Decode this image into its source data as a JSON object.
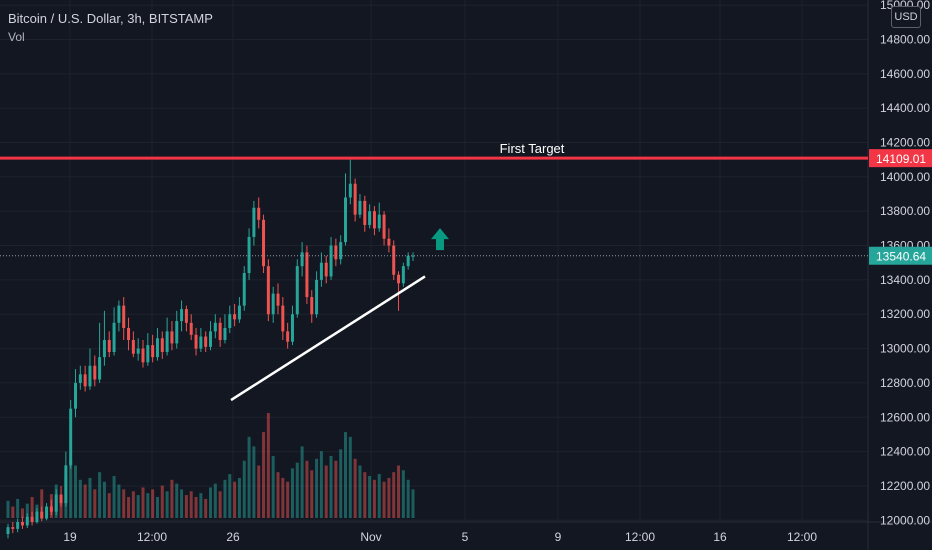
{
  "header": {
    "symbol_line": "Bitcoin / U.S. Dollar, 3h, BITSTAMP",
    "volume_label": "Vol"
  },
  "currency_button": "USD",
  "colors": {
    "background": "#131722",
    "grid": "#1e222d",
    "up": "#26a69a",
    "down": "#ef5350",
    "target_line": "#f23645",
    "trendline": "#ffffff",
    "arrow": "#089981",
    "price_tag": "#26a69a",
    "text": "#d1d4dc"
  },
  "chart_data": {
    "type": "candlestick",
    "y_axis": {
      "ticks": [
        "15000.00",
        "14800.00",
        "14600.00",
        "14400.00",
        "14200.00",
        "14000.00",
        "13800.00",
        "13600.00",
        "13400.00",
        "13200.00",
        "13000.00",
        "12800.00",
        "12600.00",
        "12400.00",
        "12200.00",
        "12000.00"
      ],
      "range": [
        11990,
        15030
      ]
    },
    "x_axis": {
      "ticks": [
        "19",
        "12:00",
        "26",
        "Nov",
        "5",
        "9",
        "12:00",
        "16",
        "12:00"
      ]
    },
    "horizontal_line": {
      "label": "First Target",
      "price": 14109.01,
      "price_label": "14109.01"
    },
    "current_price": {
      "price": 13540.64,
      "price_label": "13540.64"
    },
    "trendline": {
      "from_price": 12700,
      "to_price": 13420
    },
    "arrow": {
      "direction": "up",
      "price": 13620
    },
    "candles": [
      [
        11920,
        11960,
        11895,
        11980
      ],
      [
        11960,
        11950,
        11925,
        11990
      ],
      [
        11950,
        11990,
        11930,
        12010
      ],
      [
        11990,
        11970,
        11950,
        12020
      ],
      [
        11970,
        12020,
        11955,
        12040
      ],
      [
        12020,
        11990,
        11970,
        12050
      ],
      [
        11990,
        12050,
        11980,
        12070
      ],
      [
        12050,
        12010,
        11995,
        12080
      ],
      [
        12010,
        12080,
        12000,
        12100
      ],
      [
        12080,
        12050,
        12030,
        12120
      ],
      [
        12050,
        12150,
        12030,
        12180
      ],
      [
        12150,
        12100,
        12080,
        12200
      ],
      [
        12100,
        12320,
        12080,
        12400
      ],
      [
        12320,
        12650,
        12300,
        12700
      ],
      [
        12650,
        12800,
        12600,
        12880
      ],
      [
        12800,
        12850,
        12760,
        12900
      ],
      [
        12850,
        12780,
        12750,
        12900
      ],
      [
        12780,
        12900,
        12760,
        13000
      ],
      [
        12900,
        12820,
        12780,
        12960
      ],
      [
        12820,
        12950,
        12800,
        13150
      ],
      [
        12950,
        13050,
        12900,
        13220
      ],
      [
        13050,
        12980,
        12950,
        13100
      ],
      [
        12980,
        13150,
        12960,
        13240
      ],
      [
        13150,
        13250,
        13100,
        13280
      ],
      [
        13250,
        13120,
        13050,
        13300
      ],
      [
        13120,
        13050,
        12990,
        13180
      ],
      [
        13050,
        12970,
        12950,
        13100
      ],
      [
        12970,
        13000,
        12930,
        13060
      ],
      [
        13000,
        12920,
        12890,
        13050
      ],
      [
        12920,
        13020,
        12900,
        13090
      ],
      [
        13020,
        12950,
        12920,
        13080
      ],
      [
        12950,
        13060,
        12930,
        13120
      ],
      [
        13060,
        12980,
        12940,
        13100
      ],
      [
        12980,
        13100,
        12960,
        13180
      ],
      [
        13100,
        13030,
        12990,
        13160
      ],
      [
        13030,
        13160,
        13000,
        13220
      ],
      [
        13160,
        13230,
        13100,
        13280
      ],
      [
        13230,
        13150,
        13100,
        13250
      ],
      [
        13150,
        13080,
        13050,
        13200
      ],
      [
        13080,
        13000,
        12960,
        13120
      ],
      [
        13000,
        13070,
        12980,
        13120
      ],
      [
        13070,
        13010,
        12980,
        13100
      ],
      [
        13010,
        13100,
        12990,
        13160
      ],
      [
        13100,
        13150,
        13060,
        13200
      ],
      [
        13150,
        13050,
        13010,
        13180
      ],
      [
        13050,
        13120,
        13030,
        13200
      ],
      [
        13120,
        13200,
        13090,
        13250
      ],
      [
        13200,
        13170,
        13130,
        13260
      ],
      [
        13170,
        13250,
        13150,
        13300
      ],
      [
        13250,
        13440,
        13220,
        13480
      ],
      [
        13440,
        13650,
        13400,
        13700
      ],
      [
        13650,
        13820,
        13600,
        13860
      ],
      [
        13820,
        13750,
        13700,
        13880
      ],
      [
        13750,
        13480,
        13440,
        13780
      ],
      [
        13480,
        13200,
        13160,
        13520
      ],
      [
        13200,
        13320,
        13150,
        13360
      ],
      [
        13320,
        13250,
        13200,
        13380
      ],
      [
        13250,
        13100,
        13050,
        13300
      ],
      [
        13100,
        13040,
        13000,
        13150
      ],
      [
        13040,
        13200,
        13020,
        13250
      ],
      [
        13200,
        13480,
        13180,
        13520
      ],
      [
        13480,
        13560,
        13420,
        13620
      ],
      [
        13560,
        13300,
        13260,
        13600
      ],
      [
        13300,
        13200,
        13150,
        13340
      ],
      [
        13200,
        13400,
        13180,
        13450
      ],
      [
        13400,
        13500,
        13360,
        13560
      ],
      [
        13500,
        13420,
        13380,
        13540
      ],
      [
        13420,
        13600,
        13400,
        13650
      ],
      [
        13600,
        13520,
        13480,
        13640
      ],
      [
        13520,
        13620,
        13490,
        13660
      ],
      [
        13620,
        13880,
        13600,
        14020
      ],
      [
        13880,
        13960,
        13840,
        14100
      ],
      [
        13960,
        13780,
        13740,
        13990
      ],
      [
        13780,
        13860,
        13760,
        13900
      ],
      [
        13860,
        13720,
        13680,
        13890
      ],
      [
        13720,
        13800,
        13700,
        13840
      ],
      [
        13800,
        13700,
        13660,
        13830
      ],
      [
        13700,
        13780,
        13680,
        13850
      ],
      [
        13780,
        13640,
        13600,
        13800
      ],
      [
        13640,
        13600,
        13560,
        13700
      ],
      [
        13600,
        13430,
        13400,
        13630
      ],
      [
        13430,
        13380,
        13220,
        13450
      ],
      [
        13380,
        13480,
        13360,
        13500
      ],
      [
        13480,
        13540,
        13460,
        13560
      ],
      [
        13540,
        13541,
        13510,
        13560
      ]
    ],
    "volume": [
      18,
      12,
      20,
      10,
      15,
      22,
      14,
      30,
      12,
      25,
      35,
      22,
      45,
      60,
      55,
      40,
      35,
      42,
      30,
      48,
      38,
      26,
      44,
      35,
      30,
      22,
      28,
      24,
      32,
      26,
      30,
      22,
      34,
      28,
      40,
      36,
      30,
      24,
      28,
      22,
      26,
      20,
      32,
      36,
      28,
      40,
      46,
      38,
      42,
      60,
      85,
      75,
      55,
      90,
      110,
      65,
      48,
      42,
      38,
      52,
      58,
      75,
      60,
      50,
      62,
      70,
      55,
      65,
      60,
      72,
      90,
      85,
      62,
      55,
      48,
      44,
      40,
      46,
      38,
      42,
      48,
      55,
      50,
      40,
      30
    ]
  }
}
